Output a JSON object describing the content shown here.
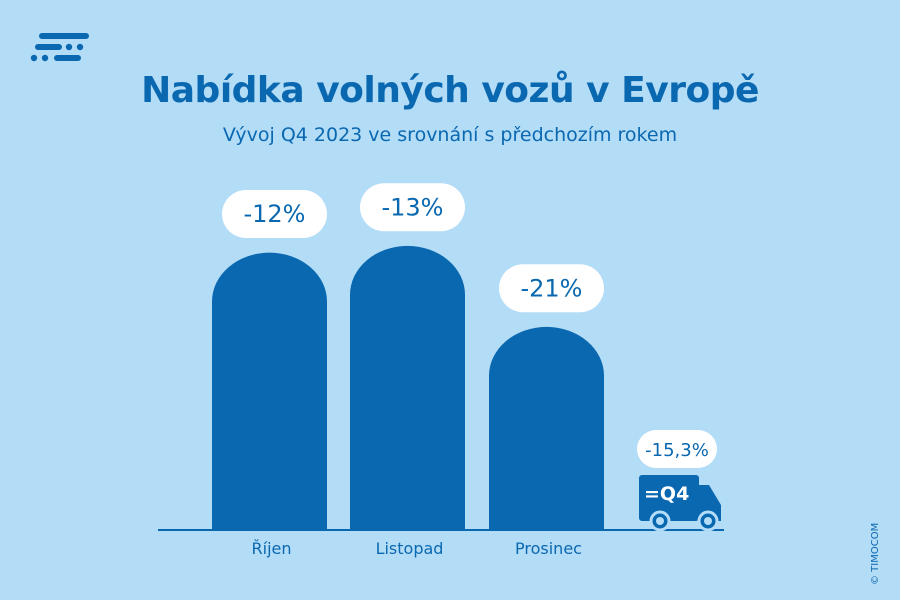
{
  "title": "Nabídka volných vozů v Evropě",
  "subtitle": "Vývoj Q4 2023 ve srovnání s předchozím rokem",
  "copyright": "© TIMOCOM",
  "logo": "TIMOCOM",
  "colors": {
    "background": "#b3dcf7",
    "bar": "#0a68b0",
    "label_bg": "#ffffff"
  },
  "chart_data": {
    "type": "bar",
    "categories": [
      "Říjen",
      "Listopad",
      "Prosinec"
    ],
    "values": [
      -12,
      -13,
      -21
    ],
    "data_labels": [
      "-12%",
      "-13%",
      "-21%"
    ],
    "summary": {
      "label": "=Q4",
      "value": -15.3,
      "data_label": "-15,3%",
      "icon": "truck-icon"
    },
    "title": "Nabídka volných vozů v Evropě",
    "subtitle": "Vývoj Q4 2023 ve srovnání s předchozím rokem",
    "xlabel": "",
    "ylabel": "",
    "grid": false
  }
}
